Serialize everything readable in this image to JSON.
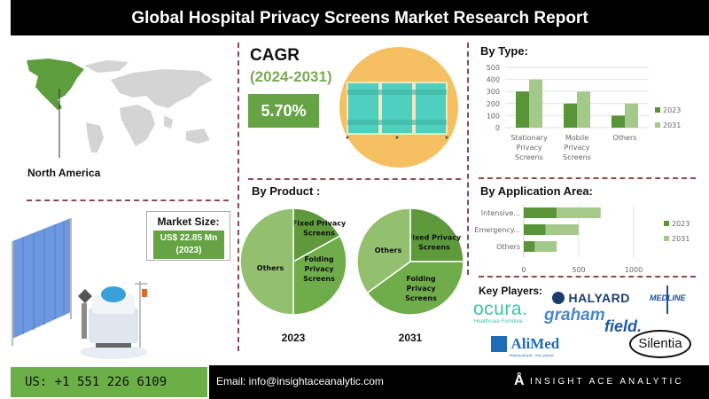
{
  "header": {
    "title": "Global Hospital Privacy Screens Market Research Report"
  },
  "region": {
    "label": "North America",
    "map_icon": "world-map-icon"
  },
  "cagr": {
    "title": "CAGR",
    "period": "(2024-2031)",
    "value": "5.70%",
    "image_icon": "privacy-screen-icon"
  },
  "market_size": {
    "label": "Market Size:",
    "value": "US$ 22.85 Mn",
    "year": "(2023)",
    "image_icon": "hospital-bed-curtain-icon"
  },
  "by_type": {
    "title": "By Type:"
  },
  "by_application": {
    "title": "By Application Area:"
  },
  "by_product": {
    "title": "By Product :"
  },
  "key_players": {
    "title": "Key Players:",
    "logos": [
      "HALYARD",
      "MEDLINE",
      "ocura.",
      "Healthcare Furniture",
      "graham",
      "field.",
      "AliMed",
      "Helping people...help people",
      "Silentia"
    ]
  },
  "footer": {
    "phone": "US: +1 551 226 6109",
    "email": "Email: info@insightaceanalytic.com",
    "brand": "INSIGHT ACE ANALYTIC"
  },
  "colors": {
    "dark_green": "#5a9438",
    "light_green": "#a4c98a",
    "mid_green": "#6ea84b",
    "pale_green": "#8dbd6c"
  },
  "chart_data": [
    {
      "type": "bar",
      "title": "By Type:",
      "categories": [
        "Stationary Privacy Screens",
        "Mobile Privacy Screens",
        "Others"
      ],
      "category_lines": [
        [
          "Stationary",
          "Privacy",
          "Screens"
        ],
        [
          "Mobile",
          "Privacy",
          "Screens"
        ],
        [
          "Others"
        ]
      ],
      "series": [
        {
          "name": "2023",
          "values": [
            300,
            200,
            100
          ]
        },
        {
          "name": "2031",
          "values": [
            400,
            300,
            200
          ]
        }
      ],
      "ylim": [
        0,
        500
      ],
      "yticks": [
        0,
        100,
        200,
        300,
        400,
        500
      ],
      "grid": true,
      "legend": "right"
    },
    {
      "type": "bar",
      "orientation": "horizontal-stacked",
      "title": "By Application Area:",
      "categories": [
        "Intensive...",
        "Emergency...",
        "Others"
      ],
      "series": [
        {
          "name": "2023",
          "values": [
            300,
            200,
            100
          ]
        },
        {
          "name": "2031",
          "values": [
            400,
            300,
            200
          ]
        }
      ],
      "xlim": [
        0,
        1000
      ],
      "xticks": [
        0,
        500,
        1000
      ],
      "grid": true,
      "legend": "right"
    },
    {
      "type": "pie",
      "title": "2023",
      "slices": [
        {
          "label": "Fixed Privacy Screens",
          "value": 17
        },
        {
          "label": "Folding Privacy Screens",
          "value": 33
        },
        {
          "label": "Others",
          "value": 50
        }
      ]
    },
    {
      "type": "pie",
      "title": "2031",
      "slices": [
        {
          "label": "Fixed Privacy Screens",
          "value": 25
        },
        {
          "label": "Folding Privacy Screens",
          "value": 40
        },
        {
          "label": "Others",
          "value": 35
        }
      ]
    }
  ]
}
